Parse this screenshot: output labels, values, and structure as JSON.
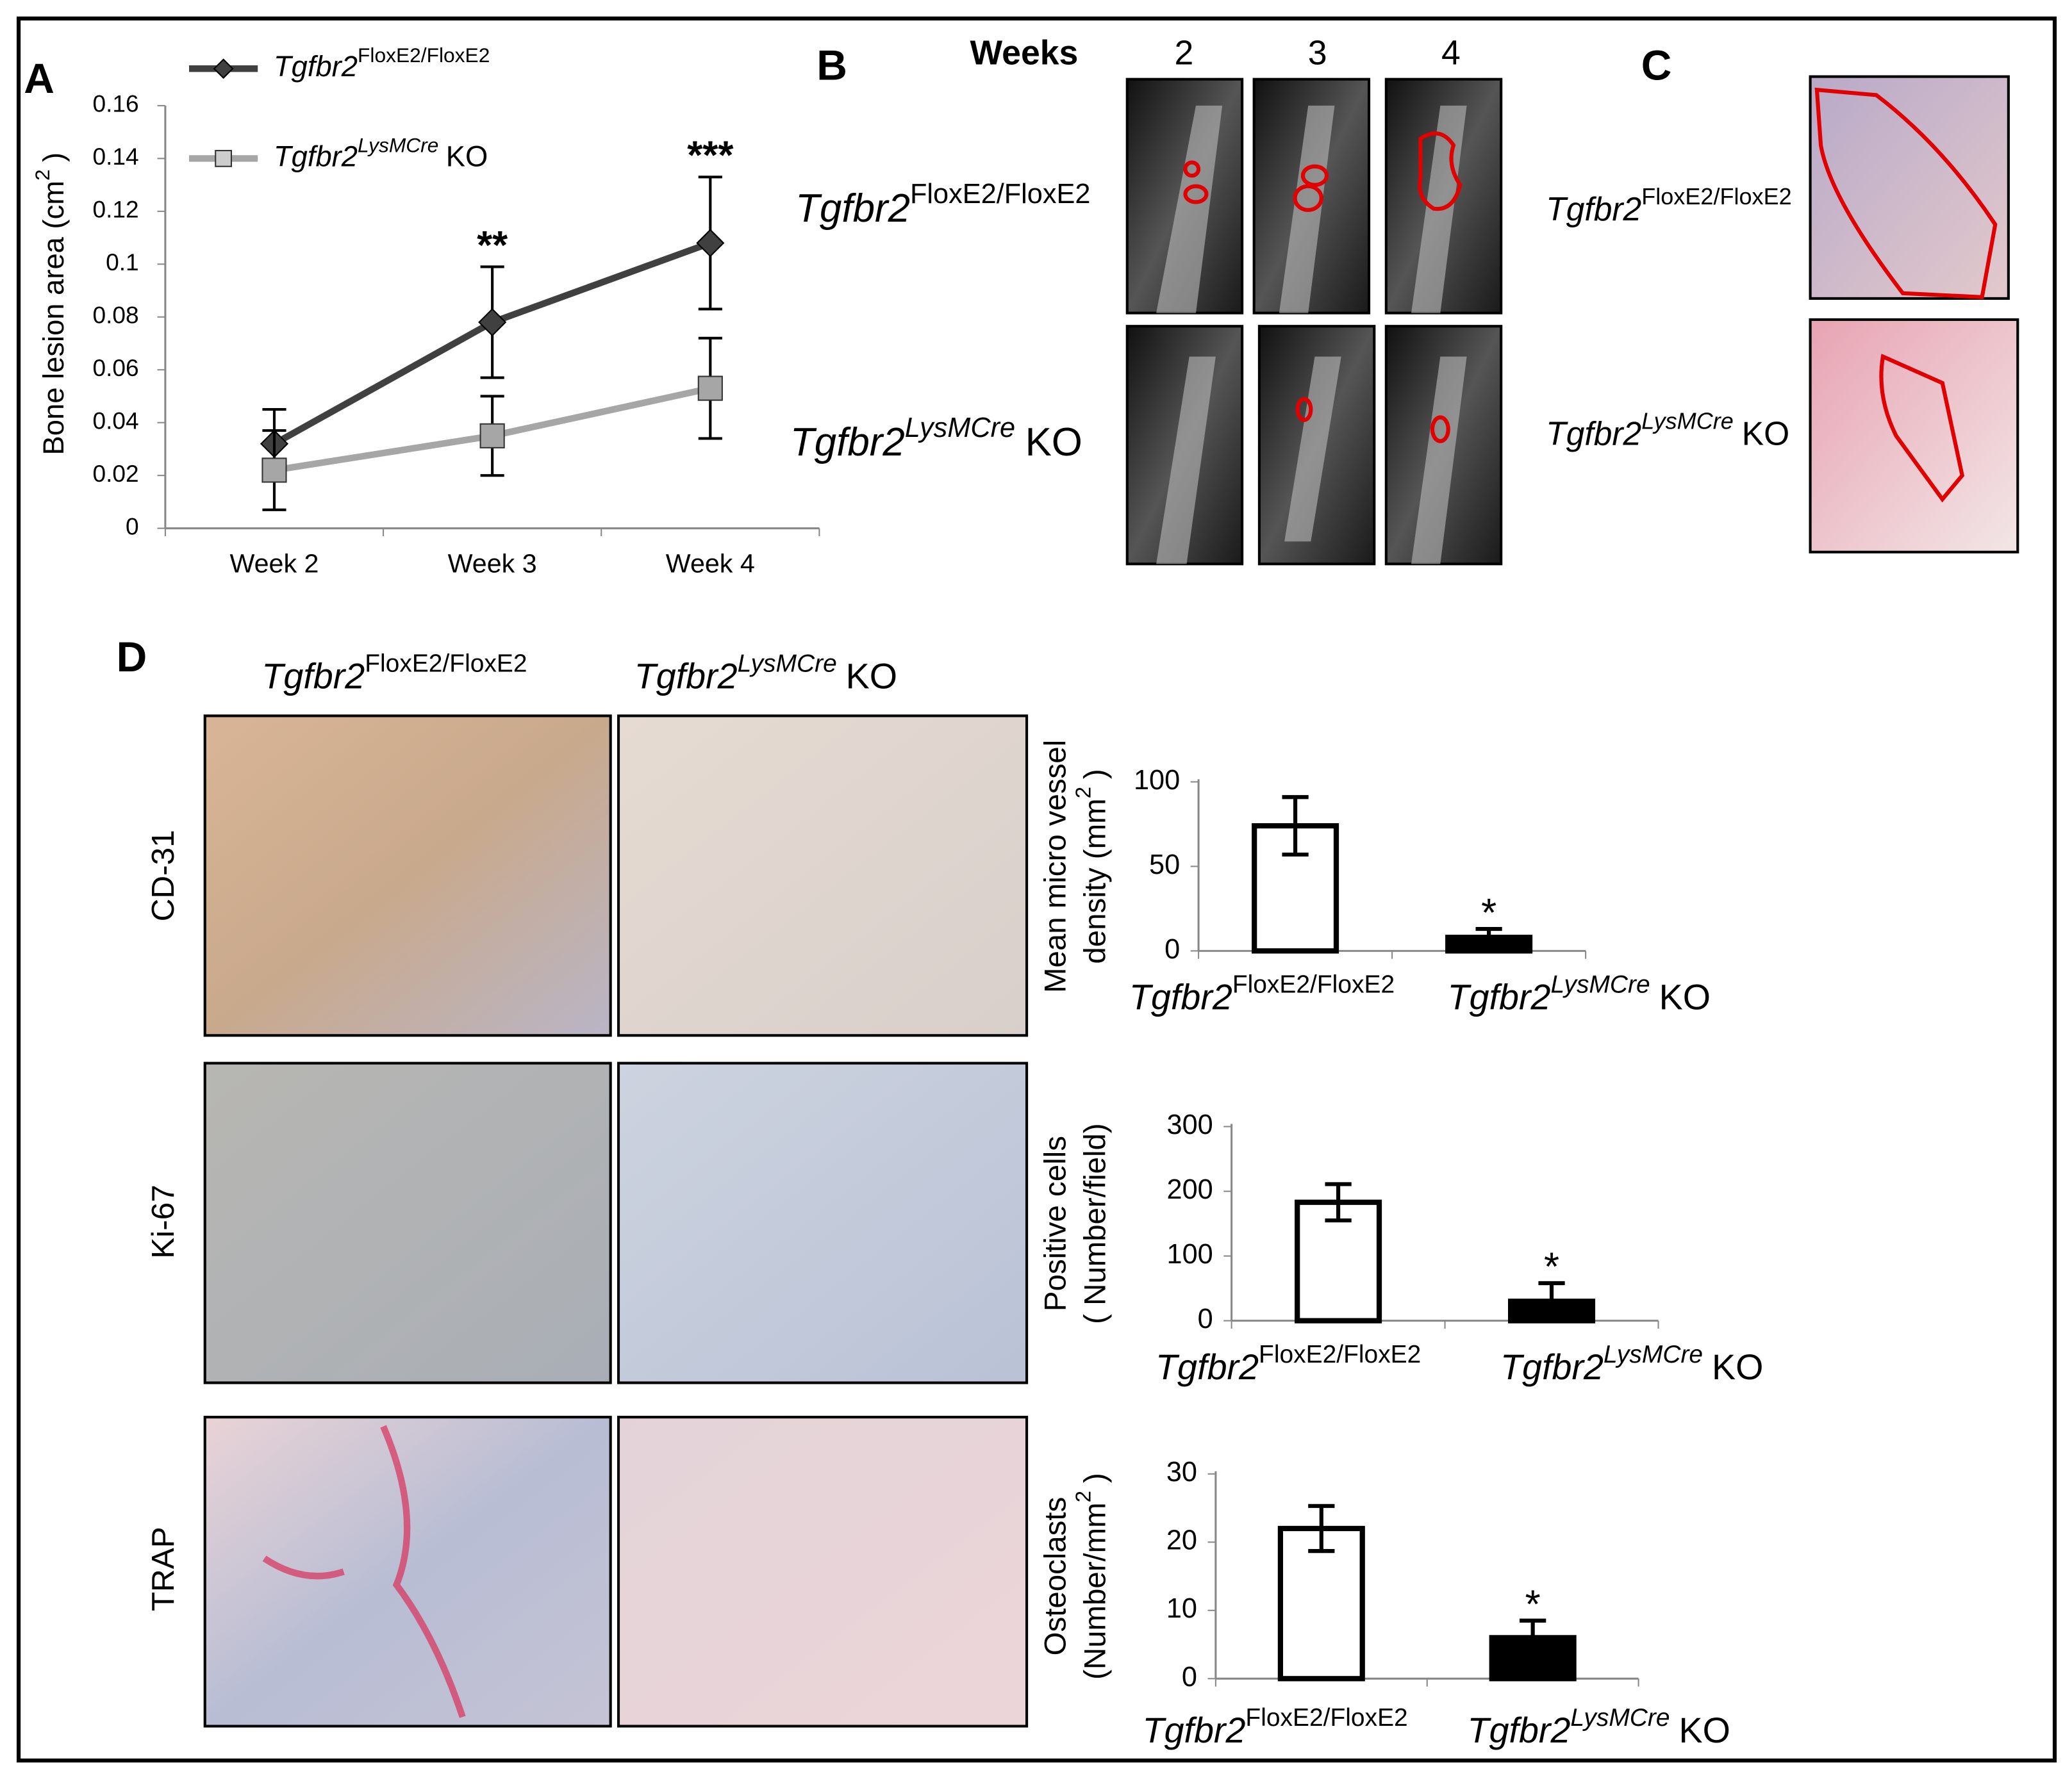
{
  "chart_data": [
    {
      "type": "line",
      "y_label": [
        "Bone lesion area (cm",
        "2",
        ")"
      ],
      "categories": [
        "Week 2",
        "Week 3",
        "Week 4"
      ],
      "ylim": [
        0,
        0.16
      ],
      "yticks": [
        0,
        0.02,
        0.04,
        0.06,
        0.08,
        0.1,
        0.12,
        0.14,
        0.16
      ],
      "series": [
        {
          "name": [
            "Tgfbr2",
            "FloxE2/FloxE2"
          ],
          "color": "#404040",
          "marker": "diamond",
          "values": [
            0.032,
            0.078,
            0.108
          ],
          "errors": [
            0.013,
            0.021,
            0.025
          ],
          "significance": [
            null,
            "**",
            "***"
          ]
        },
        {
          "name": [
            "Tgfbr2",
            "LysMCre",
            "KO"
          ],
          "color": "#a6a6a6",
          "marker": "square",
          "values": [
            0.022,
            0.035,
            0.053
          ],
          "errors": [
            0.015,
            0.015,
            0.019
          ]
        }
      ]
    },
    {
      "type": "bar",
      "y_label": [
        [
          "Mean micro vessel"
        ],
        [
          "density (mm",
          "2",
          ")"
        ]
      ],
      "categories": [
        [
          "Tgfbr2",
          "FloxE2/FloxE2"
        ],
        [
          "Tgfbr2",
          "LysMCre",
          "KO"
        ]
      ],
      "colors": [
        "#ffffff",
        "#000000"
      ],
      "values": [
        74,
        8
      ],
      "errors": [
        17,
        5
      ],
      "significance": [
        null,
        "*"
      ],
      "ylim": [
        0,
        100
      ],
      "yticks": [
        0,
        50,
        100
      ]
    },
    {
      "type": "bar",
      "y_label": [
        [
          "Positive cells"
        ],
        [
          "( Number/field)"
        ]
      ],
      "categories": [
        [
          "Tgfbr2",
          "FloxE2/FloxE2"
        ],
        [
          "Tgfbr2",
          "LysMCre",
          "KO"
        ]
      ],
      "colors": [
        "#ffffff",
        "#000000"
      ],
      "values": [
        183,
        30
      ],
      "errors": [
        28,
        28
      ],
      "significance": [
        null,
        "*"
      ],
      "ylim": [
        0,
        300
      ],
      "yticks": [
        0,
        100,
        200,
        300
      ]
    },
    {
      "type": "bar",
      "y_label": [
        [
          "Osteoclasts"
        ],
        [
          "(Number/mm",
          "2",
          ")"
        ]
      ],
      "categories": [
        [
          "Tgfbr2",
          "FloxE2/FloxE2"
        ],
        [
          "Tgfbr2",
          "LysMCre",
          "KO"
        ]
      ],
      "colors": [
        "#ffffff",
        "#000000"
      ],
      "values": [
        22,
        6
      ],
      "errors": [
        3.3,
        2.5
      ],
      "significance": [
        null,
        "*"
      ],
      "ylim": [
        0,
        30
      ],
      "yticks": [
        0,
        10,
        20,
        30
      ]
    }
  ],
  "panels": {
    "labels": [
      "A",
      "B",
      "C",
      "D"
    ],
    "b": {
      "header": "Weeks",
      "weeks": [
        "2",
        "3",
        "4"
      ],
      "rows": [
        [
          "Tgfbr2",
          "FloxE2/FloxE2"
        ],
        [
          "Tgfbr2",
          "LysMCre",
          "KO"
        ]
      ]
    },
    "c": {
      "rows": [
        [
          "Tgfbr2",
          "FloxE2/FloxE2"
        ],
        [
          "Tgfbr2",
          "LysMCre",
          "KO"
        ]
      ]
    },
    "d": {
      "columns": [
        [
          "Tgfbr2",
          "FloxE2/FloxE2"
        ],
        [
          "Tgfbr2",
          "LysMCre",
          "KO"
        ]
      ],
      "rows": [
        "CD-31",
        "Ki-67",
        "TRAP"
      ]
    }
  }
}
